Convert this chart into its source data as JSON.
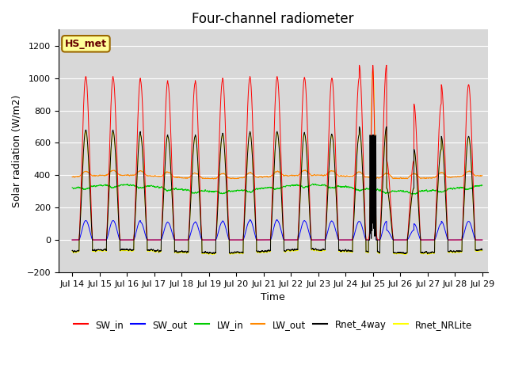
{
  "title": "Four-channel radiometer",
  "ylabel": "Solar radiation (W/m2)",
  "xlabel": "Time",
  "xlim_days": [
    13.5,
    29.2
  ],
  "ylim": [
    -200,
    1300
  ],
  "yticks": [
    -200,
    0,
    200,
    400,
    600,
    800,
    1000,
    1200
  ],
  "xtick_labels": [
    "Jul 14",
    "Jul 15",
    "Jul 16",
    "Jul 17",
    "Jul 18",
    "Jul 19",
    "Jul 20",
    "Jul 21",
    "Jul 22",
    "Jul 23",
    "Jul 24",
    "Jul 25",
    "Jul 26",
    "Jul 27",
    "Jul 28",
    "Jul 29"
  ],
  "xtick_positions": [
    14,
    15,
    16,
    17,
    18,
    19,
    20,
    21,
    22,
    23,
    24,
    25,
    26,
    27,
    28,
    29
  ],
  "colors": {
    "SW_in": "#ff0000",
    "SW_out": "#0000ff",
    "LW_in": "#00cc00",
    "LW_out": "#ff8800",
    "Rnet_4way": "#000000",
    "Rnet_NRLite": "#ffff00"
  },
  "bg_color": "#d8d8d8",
  "annotation_text": "HS_met",
  "annotation_box_color": "#ffff99",
  "annotation_box_edge": "#996600",
  "title_fontsize": 12,
  "label_fontsize": 9,
  "tick_fontsize": 8
}
